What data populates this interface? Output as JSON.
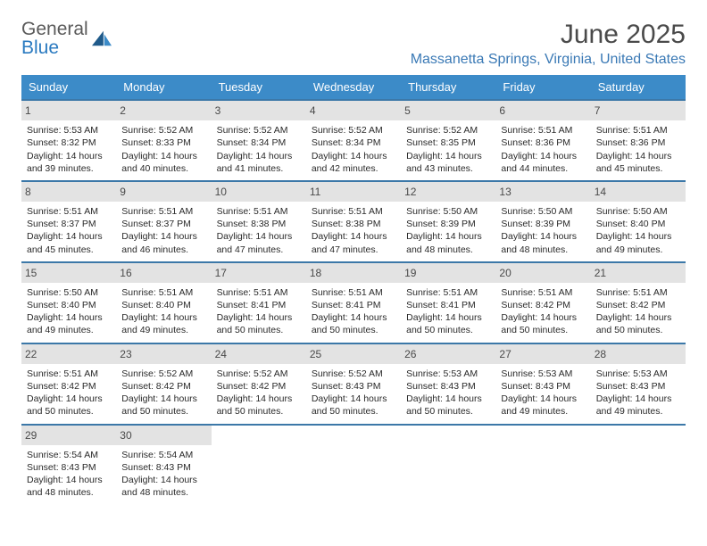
{
  "logo": {
    "line1": "General",
    "line2": "Blue"
  },
  "title": "June 2025",
  "location": "Massanetta Springs, Virginia, United States",
  "colors": {
    "header_bg": "#3c8bc8",
    "row_border": "#3c78a8",
    "daynum_bg": "#e3e3e3",
    "location_text": "#3a79b5"
  },
  "daysOfWeek": [
    "Sunday",
    "Monday",
    "Tuesday",
    "Wednesday",
    "Thursday",
    "Friday",
    "Saturday"
  ],
  "weeks": [
    [
      {
        "n": "1",
        "sunrise": "Sunrise: 5:53 AM",
        "sunset": "Sunset: 8:32 PM",
        "d1": "Daylight: 14 hours",
        "d2": "and 39 minutes."
      },
      {
        "n": "2",
        "sunrise": "Sunrise: 5:52 AM",
        "sunset": "Sunset: 8:33 PM",
        "d1": "Daylight: 14 hours",
        "d2": "and 40 minutes."
      },
      {
        "n": "3",
        "sunrise": "Sunrise: 5:52 AM",
        "sunset": "Sunset: 8:34 PM",
        "d1": "Daylight: 14 hours",
        "d2": "and 41 minutes."
      },
      {
        "n": "4",
        "sunrise": "Sunrise: 5:52 AM",
        "sunset": "Sunset: 8:34 PM",
        "d1": "Daylight: 14 hours",
        "d2": "and 42 minutes."
      },
      {
        "n": "5",
        "sunrise": "Sunrise: 5:52 AM",
        "sunset": "Sunset: 8:35 PM",
        "d1": "Daylight: 14 hours",
        "d2": "and 43 minutes."
      },
      {
        "n": "6",
        "sunrise": "Sunrise: 5:51 AM",
        "sunset": "Sunset: 8:36 PM",
        "d1": "Daylight: 14 hours",
        "d2": "and 44 minutes."
      },
      {
        "n": "7",
        "sunrise": "Sunrise: 5:51 AM",
        "sunset": "Sunset: 8:36 PM",
        "d1": "Daylight: 14 hours",
        "d2": "and 45 minutes."
      }
    ],
    [
      {
        "n": "8",
        "sunrise": "Sunrise: 5:51 AM",
        "sunset": "Sunset: 8:37 PM",
        "d1": "Daylight: 14 hours",
        "d2": "and 45 minutes."
      },
      {
        "n": "9",
        "sunrise": "Sunrise: 5:51 AM",
        "sunset": "Sunset: 8:37 PM",
        "d1": "Daylight: 14 hours",
        "d2": "and 46 minutes."
      },
      {
        "n": "10",
        "sunrise": "Sunrise: 5:51 AM",
        "sunset": "Sunset: 8:38 PM",
        "d1": "Daylight: 14 hours",
        "d2": "and 47 minutes."
      },
      {
        "n": "11",
        "sunrise": "Sunrise: 5:51 AM",
        "sunset": "Sunset: 8:38 PM",
        "d1": "Daylight: 14 hours",
        "d2": "and 47 minutes."
      },
      {
        "n": "12",
        "sunrise": "Sunrise: 5:50 AM",
        "sunset": "Sunset: 8:39 PM",
        "d1": "Daylight: 14 hours",
        "d2": "and 48 minutes."
      },
      {
        "n": "13",
        "sunrise": "Sunrise: 5:50 AM",
        "sunset": "Sunset: 8:39 PM",
        "d1": "Daylight: 14 hours",
        "d2": "and 48 minutes."
      },
      {
        "n": "14",
        "sunrise": "Sunrise: 5:50 AM",
        "sunset": "Sunset: 8:40 PM",
        "d1": "Daylight: 14 hours",
        "d2": "and 49 minutes."
      }
    ],
    [
      {
        "n": "15",
        "sunrise": "Sunrise: 5:50 AM",
        "sunset": "Sunset: 8:40 PM",
        "d1": "Daylight: 14 hours",
        "d2": "and 49 minutes."
      },
      {
        "n": "16",
        "sunrise": "Sunrise: 5:51 AM",
        "sunset": "Sunset: 8:40 PM",
        "d1": "Daylight: 14 hours",
        "d2": "and 49 minutes."
      },
      {
        "n": "17",
        "sunrise": "Sunrise: 5:51 AM",
        "sunset": "Sunset: 8:41 PM",
        "d1": "Daylight: 14 hours",
        "d2": "and 50 minutes."
      },
      {
        "n": "18",
        "sunrise": "Sunrise: 5:51 AM",
        "sunset": "Sunset: 8:41 PM",
        "d1": "Daylight: 14 hours",
        "d2": "and 50 minutes."
      },
      {
        "n": "19",
        "sunrise": "Sunrise: 5:51 AM",
        "sunset": "Sunset: 8:41 PM",
        "d1": "Daylight: 14 hours",
        "d2": "and 50 minutes."
      },
      {
        "n": "20",
        "sunrise": "Sunrise: 5:51 AM",
        "sunset": "Sunset: 8:42 PM",
        "d1": "Daylight: 14 hours",
        "d2": "and 50 minutes."
      },
      {
        "n": "21",
        "sunrise": "Sunrise: 5:51 AM",
        "sunset": "Sunset: 8:42 PM",
        "d1": "Daylight: 14 hours",
        "d2": "and 50 minutes."
      }
    ],
    [
      {
        "n": "22",
        "sunrise": "Sunrise: 5:51 AM",
        "sunset": "Sunset: 8:42 PM",
        "d1": "Daylight: 14 hours",
        "d2": "and 50 minutes."
      },
      {
        "n": "23",
        "sunrise": "Sunrise: 5:52 AM",
        "sunset": "Sunset: 8:42 PM",
        "d1": "Daylight: 14 hours",
        "d2": "and 50 minutes."
      },
      {
        "n": "24",
        "sunrise": "Sunrise: 5:52 AM",
        "sunset": "Sunset: 8:42 PM",
        "d1": "Daylight: 14 hours",
        "d2": "and 50 minutes."
      },
      {
        "n": "25",
        "sunrise": "Sunrise: 5:52 AM",
        "sunset": "Sunset: 8:43 PM",
        "d1": "Daylight: 14 hours",
        "d2": "and 50 minutes."
      },
      {
        "n": "26",
        "sunrise": "Sunrise: 5:53 AM",
        "sunset": "Sunset: 8:43 PM",
        "d1": "Daylight: 14 hours",
        "d2": "and 50 minutes."
      },
      {
        "n": "27",
        "sunrise": "Sunrise: 5:53 AM",
        "sunset": "Sunset: 8:43 PM",
        "d1": "Daylight: 14 hours",
        "d2": "and 49 minutes."
      },
      {
        "n": "28",
        "sunrise": "Sunrise: 5:53 AM",
        "sunset": "Sunset: 8:43 PM",
        "d1": "Daylight: 14 hours",
        "d2": "and 49 minutes."
      }
    ],
    [
      {
        "n": "29",
        "sunrise": "Sunrise: 5:54 AM",
        "sunset": "Sunset: 8:43 PM",
        "d1": "Daylight: 14 hours",
        "d2": "and 48 minutes."
      },
      {
        "n": "30",
        "sunrise": "Sunrise: 5:54 AM",
        "sunset": "Sunset: 8:43 PM",
        "d1": "Daylight: 14 hours",
        "d2": "and 48 minutes."
      },
      {
        "empty": true
      },
      {
        "empty": true
      },
      {
        "empty": true
      },
      {
        "empty": true
      },
      {
        "empty": true
      }
    ]
  ]
}
